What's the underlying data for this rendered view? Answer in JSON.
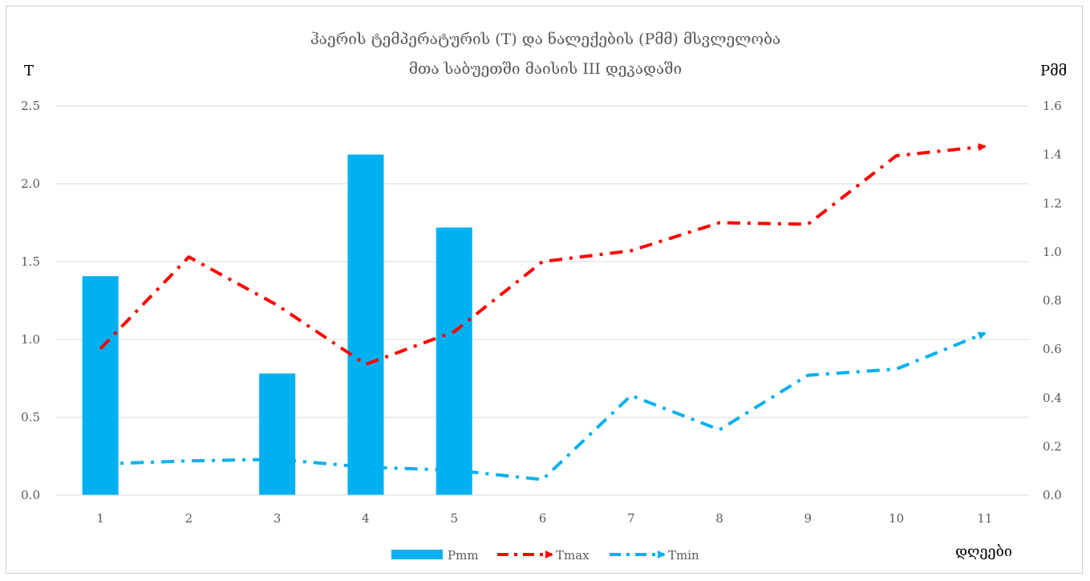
{
  "chart_data": {
    "type": "bar",
    "title_line1": "ჰაერის ტემპერატურის (T) და ნალექების (Pმმ)  მსვლელობა",
    "title_line2": "მთა საბუეთში მაისის III დეკადაში",
    "ylabel_left": "T",
    "ylabel_right": "Pმმ",
    "xlabel": "დღეები",
    "categories": [
      "1",
      "2",
      "3",
      "4",
      "5",
      "6",
      "7",
      "8",
      "9",
      "10",
      "11"
    ],
    "y_left": {
      "min": 0,
      "max": 2.5,
      "ticks": [
        "0.0",
        "0.5",
        "1.0",
        "1.5",
        "2.0",
        "2.5"
      ]
    },
    "y_right": {
      "min": 0,
      "max": 1.6,
      "ticks": [
        "0.0",
        "0.2",
        "0.4",
        "0.6",
        "0.8",
        "1.0",
        "1.2",
        "1.4",
        "1.6"
      ]
    },
    "series": [
      {
        "name": "Pmm",
        "kind": "bar",
        "axis": "right",
        "color": "#00b0f0",
        "values": [
          0.9,
          0,
          0.5,
          1.4,
          1.1,
          0,
          0,
          0,
          0,
          0,
          0
        ]
      },
      {
        "name": "Tmax",
        "kind": "line",
        "axis": "left",
        "color": "#ff0000",
        "dash": "dash-dot",
        "values": [
          0.94,
          1.53,
          1.22,
          0.84,
          1.05,
          1.5,
          1.57,
          1.75,
          1.74,
          2.18,
          2.24
        ]
      },
      {
        "name": "Tmin",
        "kind": "line",
        "axis": "left",
        "color": "#00b0f0",
        "dash": "dash-dot",
        "values": [
          0.2,
          0.22,
          0.23,
          0.18,
          0.16,
          0.1,
          0.64,
          0.42,
          0.77,
          0.81,
          1.04
        ]
      }
    ],
    "grid": true,
    "legend": "bottom"
  }
}
